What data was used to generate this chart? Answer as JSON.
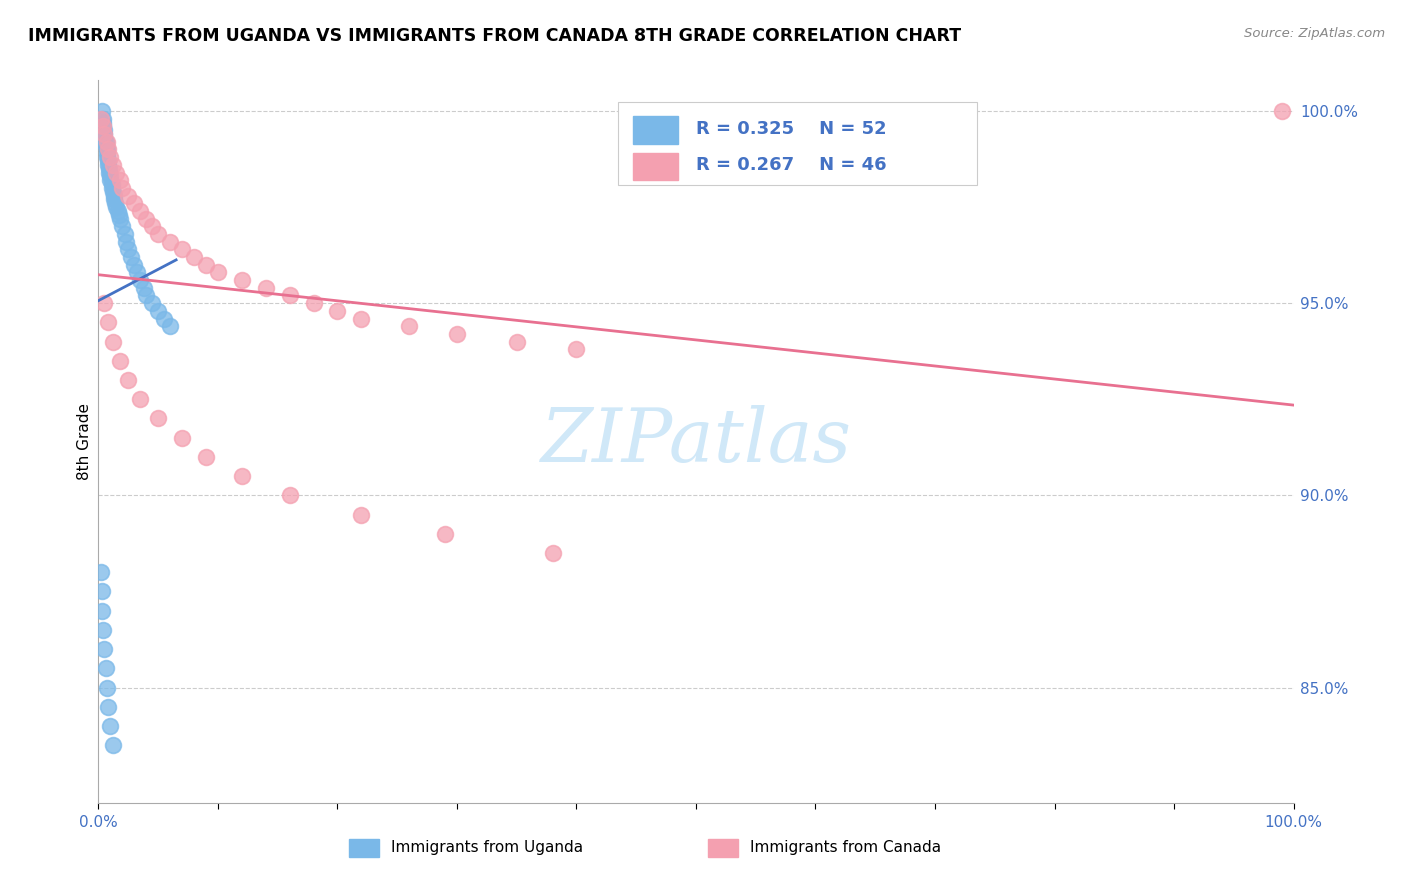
{
  "title": "IMMIGRANTS FROM UGANDA VS IMMIGRANTS FROM CANADA 8TH GRADE CORRELATION CHART",
  "source": "Source: ZipAtlas.com",
  "ylabel": "8th Grade",
  "xlim": [
    0.0,
    1.0
  ],
  "ylim": [
    0.82,
    1.008
  ],
  "y_ticks": [
    0.85,
    0.9,
    0.95,
    1.0
  ],
  "y_tick_labels": [
    "85.0%",
    "90.0%",
    "95.0%",
    "100.0%"
  ],
  "uganda_color": "#7ab8e8",
  "canada_color": "#f4a0b0",
  "uganda_line_color": "#4472c4",
  "canada_line_color": "#e87090",
  "legend_color": "#4472c4",
  "uganda_R": 0.325,
  "uganda_N": 52,
  "canada_R": 0.267,
  "canada_N": 46,
  "uganda_x": [
    0.003,
    0.004,
    0.004,
    0.004,
    0.005,
    0.005,
    0.005,
    0.006,
    0.006,
    0.007,
    0.007,
    0.007,
    0.008,
    0.008,
    0.009,
    0.009,
    0.01,
    0.01,
    0.011,
    0.011,
    0.012,
    0.013,
    0.013,
    0.014,
    0.015,
    0.016,
    0.017,
    0.018,
    0.02,
    0.022,
    0.023,
    0.025,
    0.027,
    0.03,
    0.032,
    0.035,
    0.038,
    0.04,
    0.045,
    0.05,
    0.055,
    0.06,
    0.002,
    0.003,
    0.003,
    0.004,
    0.005,
    0.006,
    0.007,
    0.008,
    0.01,
    0.012
  ],
  "uganda_y": [
    1.0,
    0.998,
    0.997,
    0.996,
    0.995,
    0.994,
    0.993,
    0.992,
    0.991,
    0.99,
    0.989,
    0.988,
    0.987,
    0.986,
    0.985,
    0.984,
    0.983,
    0.982,
    0.981,
    0.98,
    0.979,
    0.978,
    0.977,
    0.976,
    0.975,
    0.974,
    0.973,
    0.972,
    0.97,
    0.968,
    0.966,
    0.964,
    0.962,
    0.96,
    0.958,
    0.956,
    0.954,
    0.952,
    0.95,
    0.948,
    0.946,
    0.944,
    0.88,
    0.875,
    0.87,
    0.865,
    0.86,
    0.855,
    0.85,
    0.845,
    0.84,
    0.835
  ],
  "canada_x": [
    0.002,
    0.004,
    0.005,
    0.007,
    0.008,
    0.01,
    0.012,
    0.015,
    0.018,
    0.02,
    0.025,
    0.03,
    0.035,
    0.04,
    0.045,
    0.05,
    0.06,
    0.07,
    0.08,
    0.09,
    0.1,
    0.12,
    0.14,
    0.16,
    0.18,
    0.2,
    0.22,
    0.26,
    0.3,
    0.35,
    0.4,
    0.005,
    0.008,
    0.012,
    0.018,
    0.025,
    0.035,
    0.05,
    0.07,
    0.09,
    0.12,
    0.16,
    0.22,
    0.29,
    0.38,
    0.99
  ],
  "canada_y": [
    0.998,
    0.996,
    0.994,
    0.992,
    0.99,
    0.988,
    0.986,
    0.984,
    0.982,
    0.98,
    0.978,
    0.976,
    0.974,
    0.972,
    0.97,
    0.968,
    0.966,
    0.964,
    0.962,
    0.96,
    0.958,
    0.956,
    0.954,
    0.952,
    0.95,
    0.948,
    0.946,
    0.944,
    0.942,
    0.94,
    0.938,
    0.95,
    0.945,
    0.94,
    0.935,
    0.93,
    0.925,
    0.92,
    0.915,
    0.91,
    0.905,
    0.9,
    0.895,
    0.89,
    0.885,
    1.0
  ],
  "bg_color": "#ffffff",
  "grid_color": "#cccccc",
  "watermark_color": "#d0e8f8"
}
